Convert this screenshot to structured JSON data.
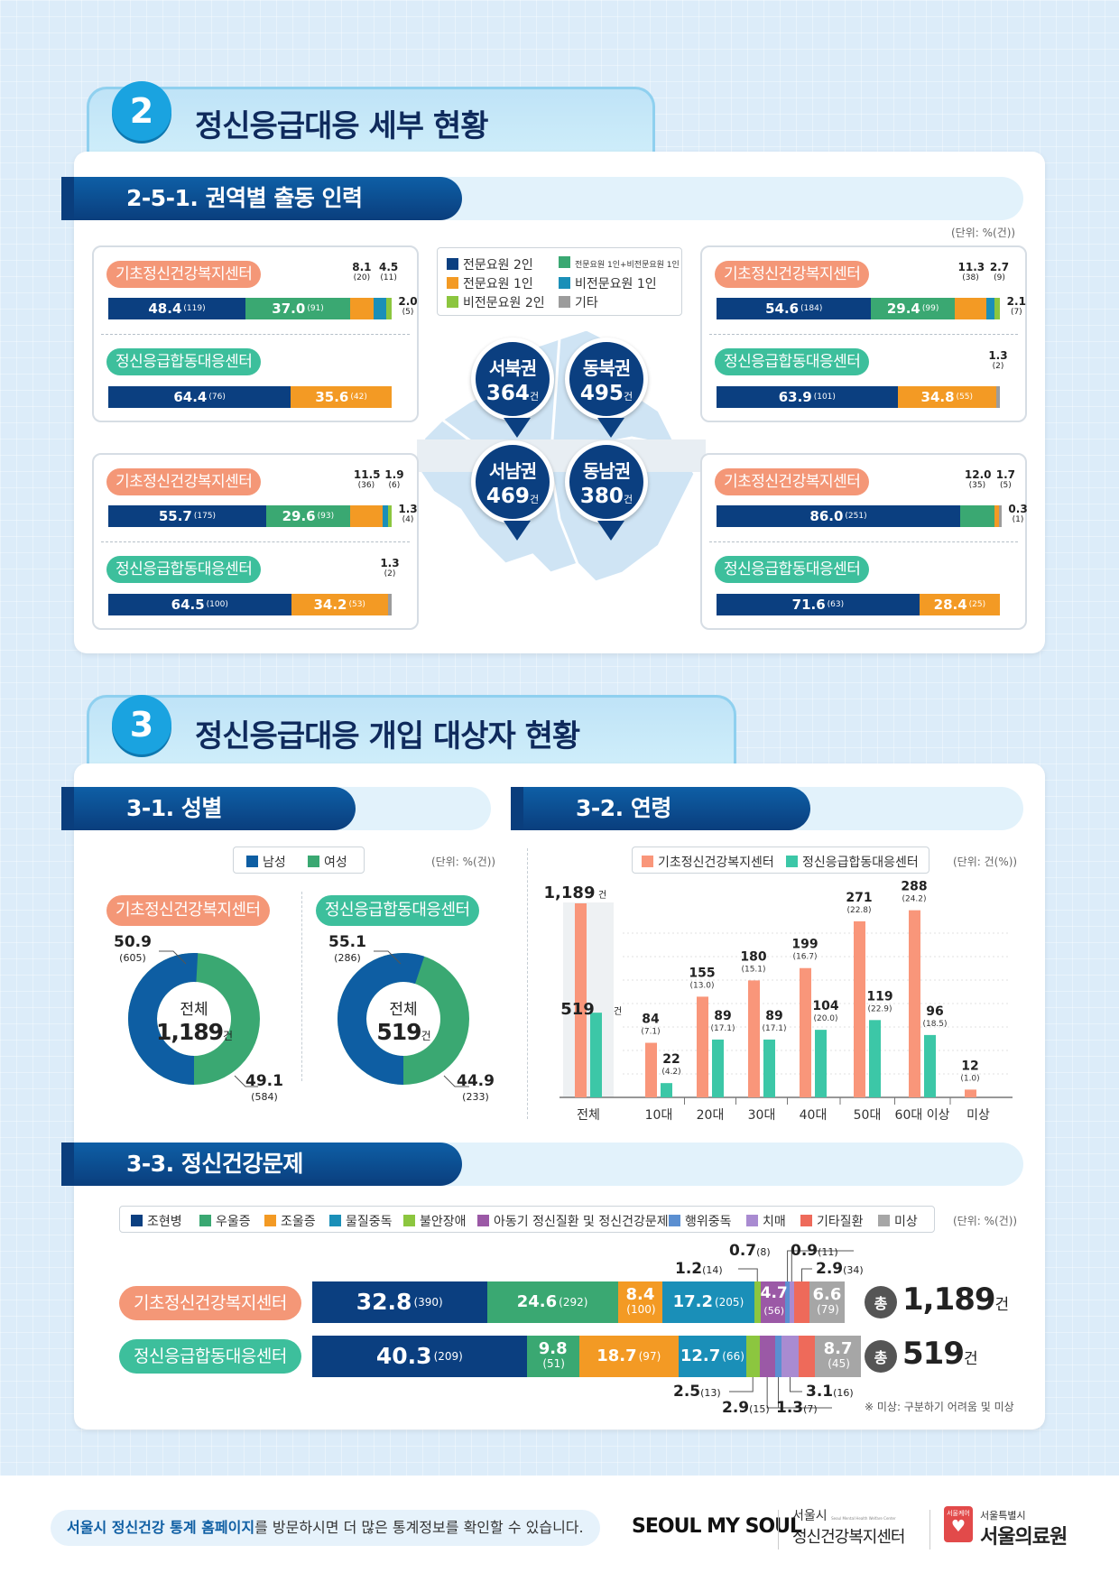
{
  "section2": {
    "num": "2",
    "title": "정신응급대응 세부 현황"
  },
  "sub251": {
    "title": "2-5-1. 권역별 출동 인력",
    "unit": "(단위: %(건))"
  },
  "staff_legend": [
    {
      "label": "전문요원 2인",
      "color": "#0b3f80"
    },
    {
      "label": "전문요원 1인+비전문요원 1인",
      "color": "#3aa872"
    },
    {
      "label": "전문요원 1인",
      "color": "#f39a24"
    },
    {
      "label": "비전문요원 1인",
      "color": "#1a8fb8"
    },
    {
      "label": "비전문요원 2인",
      "color": "#8cc63f"
    },
    {
      "label": "기타",
      "color": "#9c9c9c"
    }
  ],
  "center_basic": "기초정신건강복지센터",
  "center_joint": "정신응급합동대응센터",
  "regions": [
    {
      "name": "서북권",
      "value": "364",
      "unit": "건"
    },
    {
      "name": "동북권",
      "value": "495",
      "unit": "건"
    },
    {
      "name": "서남권",
      "value": "469",
      "unit": "건"
    },
    {
      "name": "동남권",
      "value": "380",
      "unit": "건"
    }
  ],
  "region_bars": {
    "nw_basic": [
      [
        "48.4",
        "(119)"
      ],
      [
        "37.0",
        "(91)"
      ],
      [
        "8.1",
        "(20)"
      ],
      [
        "4.5",
        "(11)"
      ],
      [
        "2.0",
        "(5)"
      ]
    ],
    "nw_joint": [
      [
        "64.4",
        "(76)"
      ],
      [
        "35.6",
        "(42)"
      ]
    ],
    "ne_basic": [
      [
        "54.6",
        "(184)"
      ],
      [
        "29.4",
        "(99)"
      ],
      [
        "11.3",
        "(38)"
      ],
      [
        "2.7",
        "(9)"
      ],
      [
        "2.1",
        "(7)"
      ]
    ],
    "ne_joint": [
      [
        "63.9",
        "(101)"
      ],
      [
        "34.8",
        "(55)"
      ],
      [
        "1.3",
        "(2)"
      ]
    ],
    "sw_basic": [
      [
        "55.7",
        "(175)"
      ],
      [
        "29.6",
        "(93)"
      ],
      [
        "11.5",
        "(36)"
      ],
      [
        "1.9",
        "(6)"
      ],
      [
        "1.3",
        "(4)"
      ]
    ],
    "sw_joint": [
      [
        "64.5",
        "(100)"
      ],
      [
        "34.2",
        "(53)"
      ],
      [
        "1.3",
        "(2)"
      ]
    ],
    "se_basic": [
      [
        "86.0",
        "(251)"
      ],
      [
        "12.0",
        "(35)"
      ],
      [
        "1.7",
        "(5)"
      ],
      [
        "0.3",
        "(1)"
      ]
    ],
    "se_joint": [
      [
        "71.6",
        "(63)"
      ],
      [
        "28.4",
        "(25)"
      ]
    ]
  },
  "section3": {
    "num": "3",
    "title": "정신응급대응 개입 대상자 현황"
  },
  "sub31": {
    "title": "3-1. 성별",
    "unit": "(단위: %(건))",
    "legend_male": "남성",
    "legend_female": "여성"
  },
  "gender": {
    "basic": {
      "total_label": "전체",
      "total": "1,189",
      "unit": "건",
      "male": "50.9",
      "male_n": "(605)",
      "female": "49.1",
      "female_n": "(584)"
    },
    "joint": {
      "total_label": "전체",
      "total": "519",
      "unit": "건",
      "male": "55.1",
      "male_n": "(286)",
      "female": "44.9",
      "female_n": "(233)"
    }
  },
  "sub32": {
    "title": "3-2. 연령",
    "unit": "(단위: 건(%))"
  },
  "sub33": {
    "title": "3-3. 정신건강문제",
    "unit": "(단위: %(건))",
    "note": "※ 미상: 구분하기 어려움 및 미상"
  },
  "chart_data": [
    {
      "type": "bar",
      "title": "3-2. 연령",
      "categories": [
        "전체",
        "10대",
        "20대",
        "30대",
        "40대",
        "50대",
        "60대 이상",
        "미상"
      ],
      "series": [
        {
          "name": "기초정신건강복지센터",
          "color": "#f9967a",
          "values": [
            1189,
            84,
            155,
            180,
            199,
            271,
            288,
            12
          ],
          "pct": [
            "",
            "(7.1)",
            "(13.0)",
            "(15.1)",
            "(16.7)",
            "(22.8)",
            "(24.2)",
            "(1.0)"
          ]
        },
        {
          "name": "정신응급합동대응센터",
          "color": "#3cc7a7",
          "values": [
            519,
            22,
            89,
            89,
            104,
            119,
            96,
            null
          ],
          "pct": [
            "",
            "(4.2)",
            "(17.1)",
            "(17.1)",
            "(20.0)",
            "(22.9)",
            "(18.5)",
            ""
          ]
        }
      ],
      "value_labels": [
        "1,189",
        "519"
      ],
      "unit": "건"
    },
    {
      "type": "bar",
      "title": "3-3. 정신건강문제",
      "categories": [
        "기초정신건강복지센터",
        "정신응급합동대응센터"
      ],
      "series": [
        {
          "name": "조현병",
          "color": "#0b3f80",
          "values": [
            32.8,
            40.3
          ],
          "counts": [
            "(390)",
            "(209)"
          ]
        },
        {
          "name": "우울증",
          "color": "#3aa872",
          "values": [
            24.6,
            9.8
          ],
          "counts": [
            "(292)",
            "(51)"
          ]
        },
        {
          "name": "조울증",
          "color": "#f39a24",
          "values": [
            8.4,
            18.7
          ],
          "counts": [
            "(100)",
            "(97)"
          ]
        },
        {
          "name": "물질중독",
          "color": "#1a8fb8",
          "values": [
            17.2,
            12.7
          ],
          "counts": [
            "(205)",
            "(66)"
          ]
        },
        {
          "name": "불안장애",
          "color": "#8cc63f",
          "values": [
            1.2,
            2.5
          ],
          "counts": [
            "(14)",
            "(13)"
          ]
        },
        {
          "name": "아동기 정신질환 및 정신건강문제",
          "color": "#9b59a6",
          "values": [
            4.7,
            2.9
          ],
          "counts": [
            "(56)",
            "(15)"
          ]
        },
        {
          "name": "행위중독",
          "color": "#5b8fd1",
          "values": [
            0.7,
            1.3
          ],
          "counts": [
            "(8)",
            "(7)"
          ]
        },
        {
          "name": "치매",
          "color": "#a98bd1",
          "values": [
            0.9,
            3.1
          ],
          "counts": [
            "(11)",
            "(16)"
          ]
        },
        {
          "name": "기타질환",
          "color": "#ee6a5a",
          "values": [
            2.9,
            3.1
          ],
          "counts": [
            "(34)",
            "(16)"
          ]
        },
        {
          "name": "미상",
          "color": "#a6a6a6",
          "values": [
            6.6,
            8.7
          ],
          "counts": [
            "(79)",
            "(45)"
          ]
        }
      ],
      "totals": [
        {
          "prefix": "총",
          "value": "1,189",
          "unit": "건"
        },
        {
          "prefix": "총",
          "value": "519",
          "unit": "건"
        }
      ]
    }
  ],
  "footer": {
    "text_bold": "서울시 정신건강 통계 홈페이지",
    "text_rest": "를 방문하시면 더 많은 통계정보를 확인할 수 있습니다.",
    "logo1": "SEOUL MY SOUL",
    "logo2_top": "서울시",
    "logo2_en": "Seoul Mental Health Welfare Center",
    "logo2_main": "정신건강복지센터",
    "logo3_tag": "서울케어",
    "logo3_top": "서울특별시",
    "logo3_main": "서울의료원"
  }
}
